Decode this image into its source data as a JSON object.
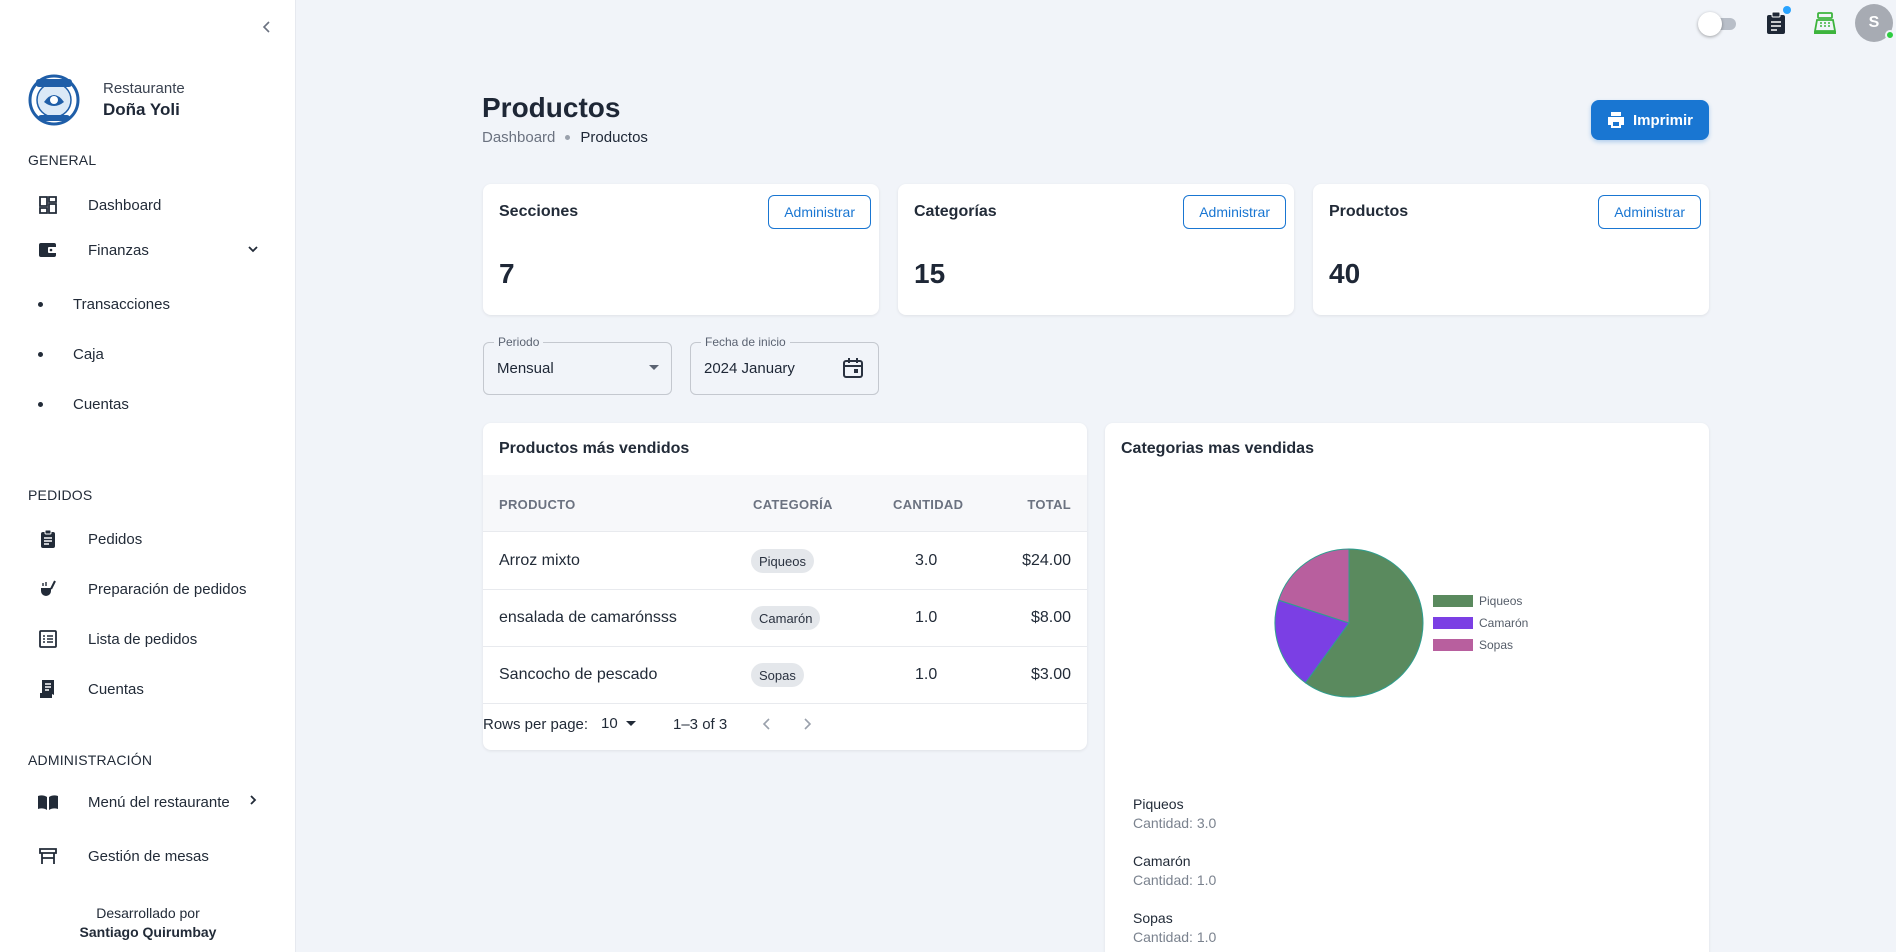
{
  "sidebar": {
    "brand": {
      "line1": "Restaurante",
      "line2": "Doña Yoli"
    },
    "sections": {
      "general": "GENERAL",
      "pedidos": "PEDIDOS",
      "admin": "ADMINISTRACIÓN"
    },
    "general_items": {
      "dashboard": "Dashboard",
      "finanzas": "Finanzas"
    },
    "finanzas_sub": [
      "Transacciones",
      "Caja",
      "Cuentas"
    ],
    "pedidos_items": [
      "Pedidos",
      "Preparación de pedidos",
      "Lista de pedidos",
      "Cuentas"
    ],
    "admin_items": [
      "Menú del restaurante",
      "Gestión de mesas"
    ],
    "footer": {
      "line1": "Desarrollado por",
      "line2": "Santiago Quirumbay"
    }
  },
  "topbar": {
    "avatar_initial": "S",
    "icons": [
      "clipboard-icon",
      "cash-register-icon"
    ],
    "theme_toggle": "off"
  },
  "page": {
    "title": "Productos",
    "breadcrumb": [
      "Dashboard",
      "Productos"
    ],
    "print_label": "Imprimir"
  },
  "stats": [
    {
      "title": "Secciones",
      "button": "Administrar",
      "value": "7"
    },
    {
      "title": "Categorías",
      "button": "Administrar",
      "value": "15"
    },
    {
      "title": "Productos",
      "button": "Administrar",
      "value": "40"
    }
  ],
  "filters": {
    "periodo": {
      "label": "Periodo",
      "value": "Mensual"
    },
    "fecha": {
      "label": "Fecha de inicio",
      "value": "2024 January"
    }
  },
  "top_products": {
    "title": "Productos más vendidos",
    "columns": [
      "PRODUCTO",
      "CATEGORÍA",
      "CANTIDAD",
      "TOTAL"
    ],
    "rows": [
      {
        "producto": "Arroz mixto",
        "categoria": "Piqueos",
        "cantidad": "3.0",
        "total": "$24.00"
      },
      {
        "producto": "ensalada de camarónsss",
        "categoria": "Camarón",
        "cantidad": "1.0",
        "total": "$8.00"
      },
      {
        "producto": "Sancocho de pescado",
        "categoria": "Sopas",
        "cantidad": "1.0",
        "total": "$3.00"
      }
    ],
    "pagination": {
      "rows_label": "Rows per page:",
      "rows_value": "10",
      "range": "1–3 of 3"
    }
  },
  "top_categories": {
    "title": "Categorias mas vendidas",
    "summary": [
      {
        "name": "Piqueos",
        "qty": "Cantidad: 3.0"
      },
      {
        "name": "Camarón",
        "qty": "Cantidad: 1.0"
      },
      {
        "name": "Sopas",
        "qty": "Cantidad: 1.0"
      }
    ]
  },
  "chart_data": {
    "type": "pie",
    "title": "Categorias mas vendidas",
    "categories": [
      "Piqueos",
      "Camarón",
      "Sopas"
    ],
    "values": [
      3.0,
      1.0,
      1.0
    ],
    "colors": [
      "#5a8a5e",
      "#7b3fe4",
      "#b85f9e"
    ],
    "legend": "right"
  },
  "colors": {
    "primary": "#1976d2",
    "background": "#f1f4f9"
  }
}
